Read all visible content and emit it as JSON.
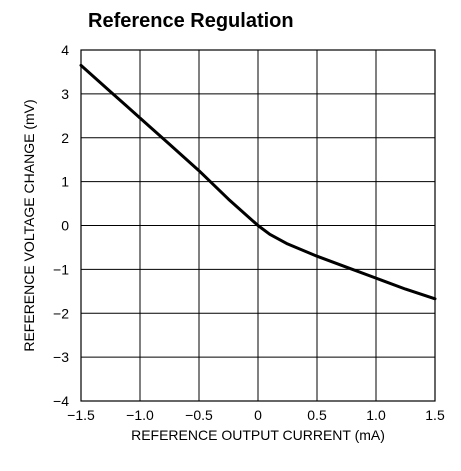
{
  "chart_data": {
    "type": "line",
    "title": "Reference Regulation",
    "xlabel": "REFERENCE OUTPUT CURRENT (mA)",
    "ylabel": "REFERENCE VOLTAGE CHANGE (mV)",
    "xlim": [
      -1.5,
      1.5
    ],
    "ylim": [
      -4,
      4
    ],
    "x_ticks": [
      -1.5,
      -1.0,
      -0.5,
      0,
      0.5,
      1.0,
      1.5
    ],
    "x_tick_labels": [
      "−1.5",
      "−1.0",
      "−0.5",
      "0",
      "0.5",
      "1.0",
      "1.5"
    ],
    "y_ticks": [
      4,
      3,
      2,
      1,
      0,
      -1,
      -2,
      -3,
      -4
    ],
    "y_tick_labels": [
      "4",
      "3",
      "2",
      "1",
      "0",
      "−1",
      "−2",
      "−3",
      "−4"
    ],
    "grid": true,
    "series": [
      {
        "x": [
          -1.5,
          -1.25,
          -1.0,
          -0.75,
          -0.5,
          -0.25,
          0,
          0.1,
          0.25,
          0.5,
          0.75,
          1.0,
          1.25,
          1.5
        ],
        "y": [
          3.65,
          3.05,
          2.45,
          1.85,
          1.25,
          0.6,
          0.0,
          -0.2,
          -0.42,
          -0.7,
          -0.95,
          -1.2,
          -1.45,
          -1.67
        ]
      }
    ]
  }
}
